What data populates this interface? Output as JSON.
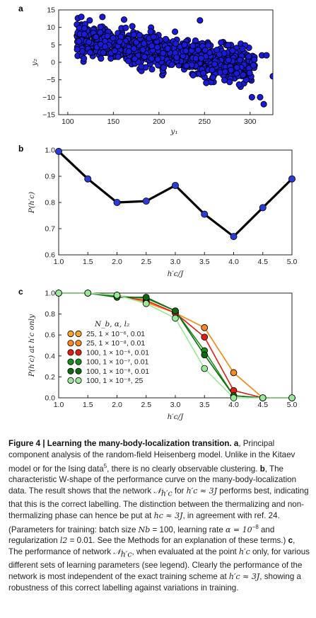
{
  "panels": {
    "a": {
      "label": "a"
    },
    "b": {
      "label": "b"
    },
    "c": {
      "label": "c"
    }
  },
  "chart_data": [
    {
      "panel": "a",
      "type": "scatter",
      "xlabel": "y₁",
      "ylabel": "y₂",
      "xlim": [
        90,
        325
      ],
      "ylim": [
        -15,
        15
      ],
      "xticks": [
        100,
        150,
        200,
        250,
        300
      ],
      "yticks": [
        15,
        10,
        5,
        0,
        -5,
        -10,
        -15
      ],
      "marker_color": "#1a1adb",
      "marker_edge": "#000000",
      "density_note": "dense cloud, ~several hundred points, no visible clustering",
      "outlier_points": [
        {
          "x": 124,
          "y": 12
        },
        {
          "x": 138,
          "y": 13
        },
        {
          "x": 245,
          "y": 12
        },
        {
          "x": 302,
          "y": -10
        },
        {
          "x": 313,
          "y": 2
        },
        {
          "x": 318,
          "y": 2
        },
        {
          "x": 311,
          "y": -10
        },
        {
          "x": 315,
          "y": -12
        },
        {
          "x": 325,
          "y": -4
        }
      ]
    },
    {
      "panel": "b",
      "type": "line",
      "xlabel": "h′c/J",
      "ylabel": "P(h′c)",
      "xlim": [
        1.0,
        5.0
      ],
      "ylim": [
        0.6,
        1.0
      ],
      "xticks": [
        "1.0",
        "1.5",
        "2.0",
        "2.5",
        "3.0",
        "3.5",
        "4.0",
        "4.5",
        "5.0"
      ],
      "yticks": [
        "1.0",
        "0.9",
        "0.8",
        "0.7",
        "0.6"
      ],
      "x": [
        1.0,
        1.5,
        2.0,
        2.5,
        3.0,
        3.5,
        4.0,
        4.5,
        5.0
      ],
      "y": [
        0.995,
        0.89,
        0.8,
        0.805,
        0.865,
        0.755,
        0.67,
        0.78,
        0.89
      ],
      "line_color": "#000000",
      "marker_color": "#2a3bd8"
    },
    {
      "panel": "c",
      "type": "line",
      "xlabel": "h′c/J",
      "ylabel": "P(h′c) at h′c only",
      "xlim": [
        1.0,
        5.0
      ],
      "ylim": [
        0.0,
        1.0
      ],
      "xticks": [
        "1.0",
        "1.5",
        "2.0",
        "2.5",
        "3.0",
        "3.5",
        "4.0",
        "4.5",
        "5.0"
      ],
      "yticks": [
        "1.0",
        "0.8",
        "0.6",
        "0.4",
        "0.2",
        "0.0"
      ],
      "legend_title": "N_b, α, l₂",
      "x": [
        1.0,
        1.5,
        2.0,
        2.5,
        3.0,
        3.5,
        4.0,
        4.5,
        5.0
      ],
      "series": [
        {
          "name": "25, 1 × 10⁻⁶, 0.01",
          "color": "#f5a623",
          "values": [
            1.0,
            1.0,
            0.98,
            0.92,
            0.81,
            0.67,
            0.24,
            0.0,
            0.0
          ]
        },
        {
          "name": "25, 1 × 10⁻⁸, 0.01",
          "color": "#f58a1f",
          "values": [
            1.0,
            1.0,
            0.98,
            0.91,
            0.81,
            0.67,
            0.24,
            0.0,
            0.0
          ]
        },
        {
          "name": "100, 1 × 10⁻⁶, 0.01",
          "color": "#dd1f12",
          "values": [
            1.0,
            1.0,
            0.97,
            0.93,
            0.81,
            0.58,
            0.07,
            0.0,
            0.0
          ]
        },
        {
          "name": "100, 1 × 10⁻⁷, 0.01",
          "color": "#1f8a1f",
          "values": [
            1.0,
            1.0,
            0.97,
            0.95,
            0.83,
            0.45,
            0.02,
            0.0,
            0.0
          ]
        },
        {
          "name": "100, 1 × 10⁻⁸, 0.01",
          "color": "#0f6a0f",
          "values": [
            1.0,
            1.0,
            0.96,
            0.96,
            0.83,
            0.41,
            0.02,
            0.0,
            0.0
          ]
        },
        {
          "name": "100, 1 × 10⁻⁸, 25",
          "color": "#98e898",
          "values": [
            1.0,
            1.0,
            0.98,
            0.9,
            0.76,
            0.28,
            0.0,
            0.0,
            0.0
          ]
        }
      ]
    }
  ],
  "caption": {
    "fig": "Figure 4 | Learning the many-body-localization transition.",
    "a_label": "a",
    "a_text": ", Principal component analysis of the random-field Heisenberg model. Unlike in the Kitaev model or for the Ising data",
    "a_ref": "5",
    "a_text2": ", there is no clearly observable clustering.",
    "b_label": "b",
    "b_text": ", The characteristic W-shape of the performance curve on the many-body-localization data. The result shows that the network ",
    "b_net": "𝒩",
    "b_net_sub": "h′c",
    "b_text2": " for ",
    "b_cond": "h′c ≈ 3J",
    "b_text3": " performs best, indicating that this is the correct labelling. The distinction between the thermalizing and non-thermalizing phase can hence be put at ",
    "b_hc": "hc ≈ 3J",
    "b_text4": ", in agreement with ref. 24. (Parameters for training: batch size ",
    "b_nb": "Nb",
    "b_text5": " = 100, learning rate ",
    "b_alpha": "α = 10",
    "b_alpha_exp": "−8",
    "b_text6": " and regularization ",
    "b_l2": "l2",
    "b_text7": " = 0.01. See the Methods for an explanation of these terms.)",
    "c_label": "c",
    "c_text": ", The performance of network ",
    "c_net": "𝒩",
    "c_net_sub": "h′c",
    "c_text2": ", when evaluated at the point ",
    "c_point": "h′c",
    "c_text3": " only, for various different sets of learning parameters (see legend). Clearly the performance of the network is most independent of the exact training scheme at ",
    "c_cond": "h′c ≈ 3J",
    "c_text4": ", showing a robustness of this correct labelling against variations in training."
  }
}
